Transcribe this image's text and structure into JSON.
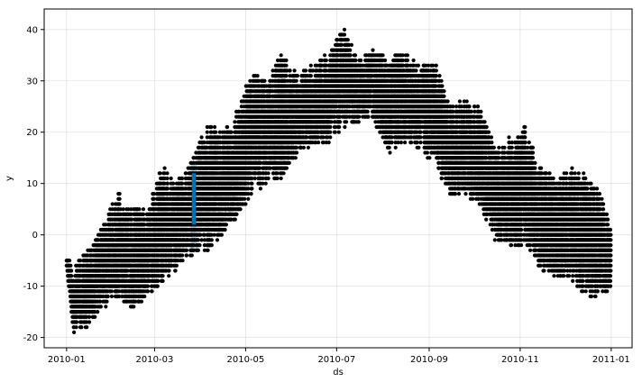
{
  "chart_data": {
    "type": "scatter",
    "title": "",
    "xlabel": "ds",
    "ylabel": "y",
    "x_range": [
      "2009-12-17",
      "2011-01-15"
    ],
    "y_range": [
      -22,
      44
    ],
    "x_ticks": [
      "2010-01",
      "2010-03",
      "2010-05",
      "2010-07",
      "2010-09",
      "2010-11",
      "2011-01"
    ],
    "x_tick_dates": [
      "2010-01-01",
      "2010-03-01",
      "2010-05-01",
      "2010-07-01",
      "2010-09-01",
      "2010-11-01",
      "2011-01-01"
    ],
    "y_ticks": [
      -20,
      -10,
      0,
      10,
      20,
      30,
      40
    ],
    "grid": true,
    "series": [
      {
        "color": "#000000",
        "marker": "dot",
        "x_start": "2010-01-01",
        "x_end": "2010-12-31",
        "envelope": [
          {
            "date": "2010-01-01",
            "min": -7,
            "max": -4
          },
          {
            "date": "2010-01-06",
            "min": -19,
            "max": -6
          },
          {
            "date": "2010-01-15",
            "min": -18,
            "max": -3
          },
          {
            "date": "2010-01-25",
            "min": -14,
            "max": 2
          },
          {
            "date": "2010-02-05",
            "min": -12,
            "max": 8
          },
          {
            "date": "2010-02-15",
            "min": -15,
            "max": 5
          },
          {
            "date": "2010-02-25",
            "min": -12,
            "max": 5
          },
          {
            "date": "2010-03-05",
            "min": -10,
            "max": 14
          },
          {
            "date": "2010-03-15",
            "min": -7,
            "max": 10
          },
          {
            "date": "2010-03-25",
            "min": -4,
            "max": 14
          },
          {
            "date": "2010-04-05",
            "min": -3,
            "max": 22
          },
          {
            "date": "2010-04-15",
            "min": 0,
            "max": 20
          },
          {
            "date": "2010-04-25",
            "min": 3,
            "max": 24
          },
          {
            "date": "2010-05-05",
            "min": 8,
            "max": 32
          },
          {
            "date": "2010-05-15",
            "min": 10,
            "max": 30
          },
          {
            "date": "2010-05-25",
            "min": 11,
            "max": 35
          },
          {
            "date": "2010-06-05",
            "min": 16,
            "max": 31
          },
          {
            "date": "2010-06-15",
            "min": 17,
            "max": 33
          },
          {
            "date": "2010-06-25",
            "min": 18,
            "max": 35
          },
          {
            "date": "2010-07-05",
            "min": 21,
            "max": 41
          },
          {
            "date": "2010-07-15",
            "min": 22,
            "max": 34
          },
          {
            "date": "2010-07-25",
            "min": 23,
            "max": 36
          },
          {
            "date": "2010-08-05",
            "min": 16,
            "max": 34
          },
          {
            "date": "2010-08-15",
            "min": 18,
            "max": 36
          },
          {
            "date": "2010-08-25",
            "min": 17,
            "max": 33
          },
          {
            "date": "2010-09-05",
            "min": 14,
            "max": 34
          },
          {
            "date": "2010-09-15",
            "min": 7,
            "max": 25
          },
          {
            "date": "2010-09-25",
            "min": 8,
            "max": 26
          },
          {
            "date": "2010-10-05",
            "min": 6,
            "max": 25
          },
          {
            "date": "2010-10-15",
            "min": -1,
            "max": 17
          },
          {
            "date": "2010-10-25",
            "min": -2,
            "max": 19
          },
          {
            "date": "2010-11-05",
            "min": -2,
            "max": 21
          },
          {
            "date": "2010-11-15",
            "min": -7,
            "max": 13
          },
          {
            "date": "2010-11-25",
            "min": -8,
            "max": 11
          },
          {
            "date": "2010-12-05",
            "min": -9,
            "max": 13
          },
          {
            "date": "2010-12-15",
            "min": -12,
            "max": 12
          },
          {
            "date": "2010-12-25",
            "min": -13,
            "max": 8
          },
          {
            "date": "2010-12-31",
            "min": -10,
            "max": 2
          }
        ]
      },
      {
        "color": "#0072B2",
        "band_color": "#a9cce3",
        "marker": "line-with-interval",
        "x_start": "2010-03-26",
        "x_end": "2010-03-28",
        "yhat": [
          2,
          12
        ],
        "interval": [
          -3,
          14
        ]
      }
    ]
  }
}
